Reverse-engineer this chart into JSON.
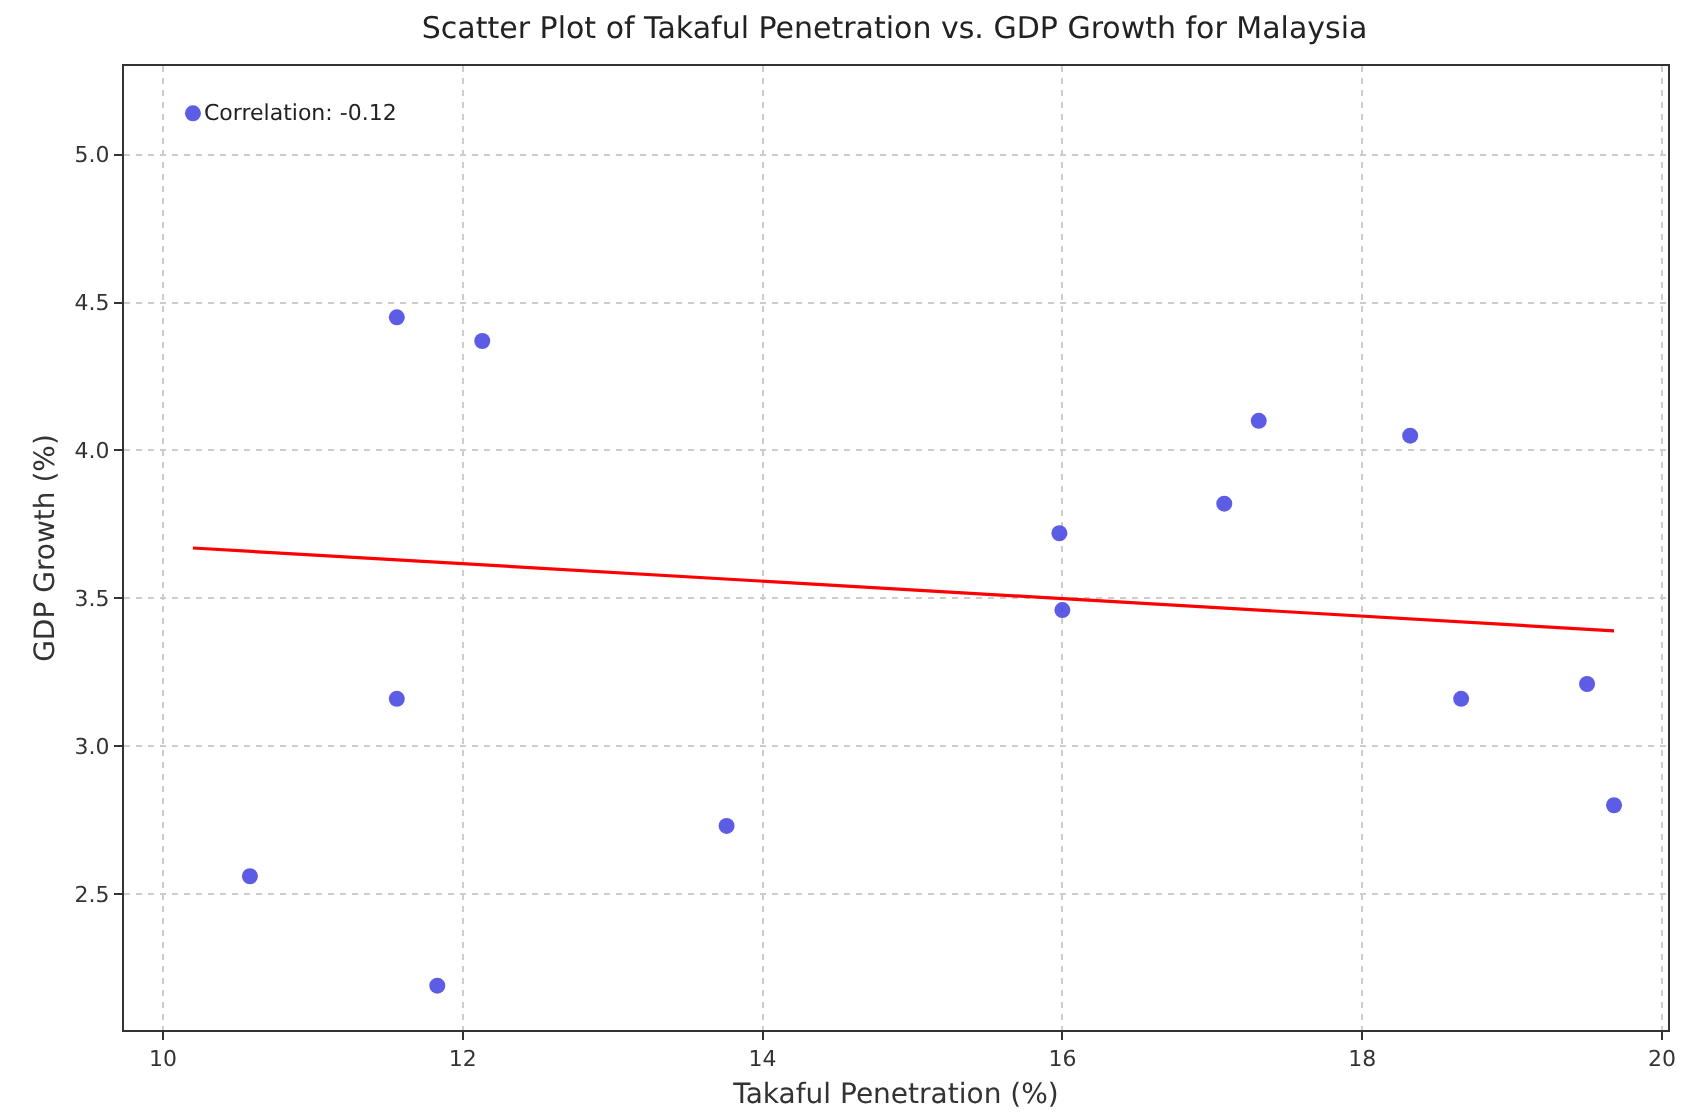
{
  "chart_data": {
    "type": "scatter",
    "title": "Scatter Plot of Takaful Penetration vs. GDP Growth for Malaysia",
    "xlabel": "Takaful Penetration (%)",
    "ylabel": "GDP Growth (%)",
    "series": [
      {
        "color": "#4040e0",
        "marker": "circle",
        "x": [
          10.2,
          10.58,
          11.56,
          12.13,
          11.56,
          11.83,
          13.76,
          15.98,
          16.0,
          17.08,
          17.31,
          18.32,
          18.66,
          19.5,
          19.68
        ],
        "values": [
          5.14,
          2.56,
          4.45,
          4.37,
          3.16,
          2.19,
          2.73,
          3.72,
          3.46,
          3.82,
          4.1,
          4.05,
          3.16,
          3.21,
          2.8
        ]
      },
      {
        "type": "line",
        "color": "#ff0000",
        "marker": "none",
        "x": [
          10.2,
          19.68
        ],
        "values": [
          3.67,
          3.39
        ]
      }
    ],
    "annotations": [
      {
        "text": "Correlation: -0.12",
        "x": 10.2,
        "y": 5.14
      }
    ],
    "xlim": [
      9.74,
      20.04
    ],
    "xticks": [
      10,
      12,
      14,
      16,
      18,
      20
    ],
    "ylim": [
      2.04,
      5.3
    ],
    "yticks": [
      {
        "value": 2.5,
        "label": "2.5"
      },
      {
        "value": 3.0,
        "label": "3.0"
      },
      {
        "value": 3.5,
        "label": "3.5"
      },
      {
        "value": 4.0,
        "label": "4.0"
      },
      {
        "value": 4.5,
        "label": "4.5"
      },
      {
        "value": 5.0,
        "label": "5.0"
      }
    ],
    "grid": true
  }
}
